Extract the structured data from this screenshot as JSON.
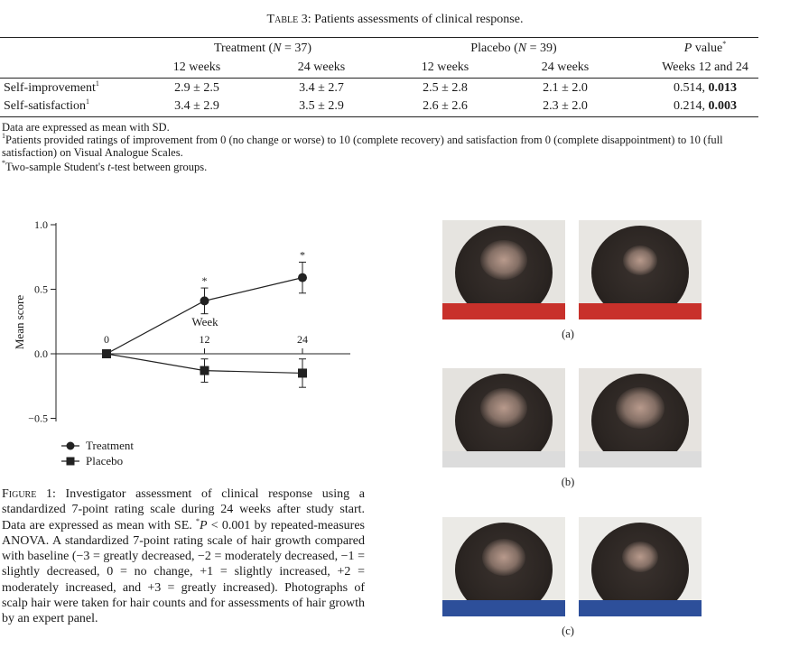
{
  "table": {
    "caption_prefix": "Table 3",
    "caption_text": ": Patients assessments of clinical response.",
    "group_treatment": "Treatment (",
    "group_treatment_n": "N",
    "group_treatment_suffix": " = 37)",
    "group_placebo": "Placebo (",
    "group_placebo_n": "N",
    "group_placebo_suffix": " = 39)",
    "pvalue_italic": "P",
    "pvalue_rest": " value",
    "pvalue_mark": "*",
    "subheaders": [
      "12 weeks",
      "24 weeks",
      "12 weeks",
      "24 weeks",
      "Weeks 12 and 24"
    ],
    "rows": [
      {
        "label": "Self-improvement",
        "mark": "1",
        "cells": [
          "2.9 ± 2.5",
          "3.4 ± 2.7",
          "2.5 ± 2.8",
          "2.1 ± 2.0"
        ],
        "p_plain": "0.514, ",
        "p_bold": "0.013"
      },
      {
        "label": "Self-satisfaction",
        "mark": "1",
        "cells": [
          "3.4 ± 2.9",
          "3.5 ± 2.9",
          "2.6 ± 2.6",
          "2.3 ± 2.0"
        ],
        "p_plain": "0.214, ",
        "p_bold": "0.003"
      }
    ],
    "footnotes": {
      "line1": "Data are expressed as mean with SD.",
      "mark2": "1",
      "line2": "Patients provided ratings of improvement from 0 (no change or worse) to 10 (complete recovery) and satisfaction from 0 (complete disappointment) to 10 (full satisfaction) on Visual Analogue Scales.",
      "mark3": "*",
      "line3a": "Two-sample Student's ",
      "line3_italic": "t",
      "line3b": "-test between groups."
    }
  },
  "chart_data": {
    "type": "line",
    "ylabel": "Mean score",
    "xlabel": "Week",
    "yticks": [
      1.0,
      0.5,
      0.0,
      -0.5
    ],
    "ytick_labels": [
      "1.0",
      "0.5",
      "0.0",
      "−0.5"
    ],
    "ylim": [
      -0.5,
      1.0
    ],
    "x": [
      0,
      12,
      24
    ],
    "xtick_labels": [
      "0",
      "12",
      "24"
    ],
    "series": [
      {
        "name": "Treatment",
        "marker": "circle",
        "values": [
          0,
          0.41,
          0.59
        ],
        "err": [
          0,
          0.1,
          0.12
        ],
        "significance": [
          "",
          "*",
          "*"
        ]
      },
      {
        "name": "Placebo",
        "marker": "square",
        "values": [
          0,
          -0.13,
          -0.15
        ],
        "err": [
          0,
          0.09,
          0.11
        ],
        "significance": [
          "",
          "",
          ""
        ]
      }
    ],
    "legend_position": "bottom-left"
  },
  "figure": {
    "caption_prefix": "Figure 1",
    "caption_part1": ": Investigator assessment of clinical response using a standardized 7-point rating scale during 24 weeks after study start. Data are expressed as mean with SE. ",
    "caption_star": "*",
    "caption_p": "P",
    "caption_part2": " < 0.001 by repeated-measures ANOVA. A standardized 7-point rating scale of hair growth compared with baseline (−3 = greatly decreased, −2 = moderately decreased, −1 = slightly decreased, 0 = no change, +1 = slightly increased, +2 = moderately increased, and +3 = greatly increased). Photographs of scalp hair were taken for hair counts and for assessments of hair growth by an expert panel."
  },
  "photos": {
    "labels": [
      "(a)",
      "(b)",
      "(c)"
    ],
    "colors": {
      "hair": "#2b2522",
      "scalp": "#b89a8c",
      "shirt_a": "#c8312b",
      "shirt_b": "#dcdcdc",
      "shirt_c": "#2d4f9a"
    }
  }
}
